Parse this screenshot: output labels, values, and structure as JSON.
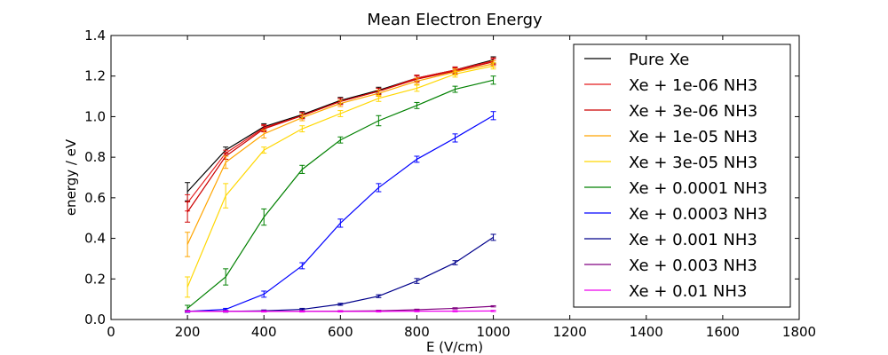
{
  "chart_data": {
    "type": "line",
    "title": "Mean Electron Energy",
    "xlabel": "E (V/cm)",
    "ylabel": "energy / eV",
    "xlim": [
      0,
      1800
    ],
    "ylim": [
      0,
      1.4
    ],
    "xticks": [
      "0",
      "200",
      "400",
      "600",
      "800",
      "1000",
      "1200",
      "1400",
      "1600",
      "1800"
    ],
    "yticks": [
      "0.0",
      "0.2",
      "0.4",
      "0.6",
      "0.8",
      "1.0",
      "1.2",
      "1.4"
    ],
    "grid": false,
    "legend_position": "top-right",
    "x": [
      200,
      300,
      400,
      500,
      600,
      700,
      800,
      900,
      1000
    ],
    "series": [
      {
        "name": "Pure Xe",
        "color": "#000000",
        "values": [
          0.63,
          0.835,
          0.95,
          1.01,
          1.08,
          1.13,
          1.19,
          1.23,
          1.28
        ],
        "errors": [
          0.045,
          0.015,
          0.015,
          0.015,
          0.015,
          0.015,
          0.015,
          0.015,
          0.015
        ]
      },
      {
        "name": "Xe + 1e-06 NH3",
        "color": "#e31a1c",
        "values": [
          0.575,
          0.82,
          0.945,
          1.005,
          1.075,
          1.125,
          1.19,
          1.23,
          1.275
        ],
        "errors": [
          0.04,
          0.015,
          0.015,
          0.015,
          0.015,
          0.015,
          0.015,
          0.015,
          0.015
        ]
      },
      {
        "name": "Xe + 3e-06 NH3",
        "color": "#cc0000",
        "values": [
          0.53,
          0.805,
          0.94,
          1.005,
          1.075,
          1.125,
          1.185,
          1.225,
          1.27
        ],
        "errors": [
          0.05,
          0.015,
          0.015,
          0.015,
          0.015,
          0.015,
          0.015,
          0.015,
          0.015
        ]
      },
      {
        "name": "Xe + 1e-05 NH3",
        "color": "#ffa500",
        "values": [
          0.37,
          0.775,
          0.915,
          0.995,
          1.065,
          1.115,
          1.175,
          1.22,
          1.26
        ],
        "errors": [
          0.06,
          0.03,
          0.02,
          0.015,
          0.015,
          0.015,
          0.015,
          0.015,
          0.015
        ]
      },
      {
        "name": "Xe + 3e-05 NH3",
        "color": "#ffd700",
        "values": [
          0.16,
          0.61,
          0.835,
          0.94,
          1.015,
          1.09,
          1.14,
          1.21,
          1.25
        ],
        "errors": [
          0.05,
          0.06,
          0.015,
          0.015,
          0.015,
          0.015,
          0.015,
          0.015,
          0.015
        ]
      },
      {
        "name": "Xe + 0.0001 NH3",
        "color": "#008000",
        "values": [
          0.055,
          0.21,
          0.505,
          0.74,
          0.885,
          0.98,
          1.055,
          1.135,
          1.18
        ],
        "errors": [
          0.015,
          0.04,
          0.04,
          0.02,
          0.015,
          0.025,
          0.015,
          0.015,
          0.02
        ]
      },
      {
        "name": "Xe + 0.0003 NH3",
        "color": "#0000ff",
        "values": [
          0.04,
          0.05,
          0.125,
          0.265,
          0.475,
          0.65,
          0.79,
          0.895,
          1.005
        ],
        "errors": [
          0.005,
          0.005,
          0.015,
          0.015,
          0.02,
          0.02,
          0.015,
          0.02,
          0.02
        ]
      },
      {
        "name": "Xe + 0.001 NH3",
        "color": "#00008b",
        "values": [
          0.04,
          0.04,
          0.043,
          0.05,
          0.075,
          0.115,
          0.19,
          0.28,
          0.405
        ],
        "errors": [
          0.004,
          0.004,
          0.004,
          0.005,
          0.005,
          0.007,
          0.012,
          0.01,
          0.015
        ]
      },
      {
        "name": "Xe + 0.003 NH3",
        "color": "#800080",
        "values": [
          0.04,
          0.04,
          0.04,
          0.04,
          0.041,
          0.043,
          0.048,
          0.055,
          0.065
        ],
        "errors": [
          0.003,
          0.003,
          0.003,
          0.003,
          0.003,
          0.003,
          0.003,
          0.003,
          0.003
        ]
      },
      {
        "name": "Xe + 0.01 NH3",
        "color": "#ee00ee",
        "values": [
          0.04,
          0.04,
          0.04,
          0.04,
          0.04,
          0.04,
          0.041,
          0.041,
          0.042
        ],
        "errors": [
          0.003,
          0.003,
          0.003,
          0.003,
          0.003,
          0.003,
          0.003,
          0.003,
          0.003
        ]
      }
    ]
  }
}
